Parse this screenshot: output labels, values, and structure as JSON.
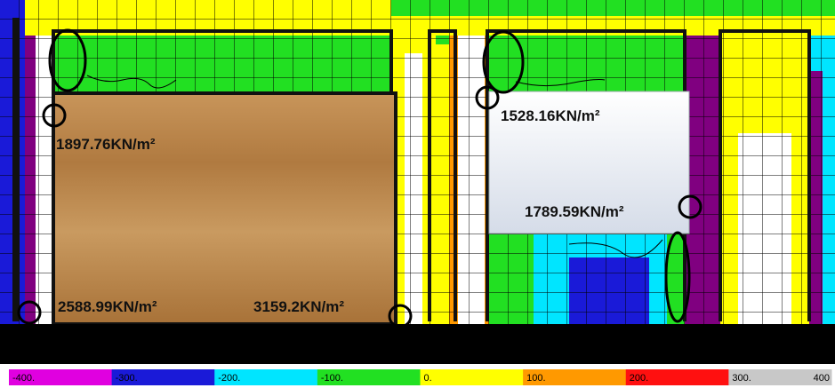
{
  "annotations": [
    "1897.76KN/m²",
    "1528.16KN/m²",
    "1789.59KN/m²",
    "2588.99KN/m²",
    "3159.2KN/m²"
  ],
  "legend": {
    "labels": [
      "-400.",
      "-300.",
      "-200.",
      "-100.",
      "0.",
      "100.",
      "200.",
      "300.",
      "400"
    ],
    "colors": [
      "#e000e0",
      "#1a1ad8",
      "#00e5ff",
      "#22e022",
      "#ffff00",
      "#ff9900",
      "#ff1010",
      "#c8c8c8"
    ]
  }
}
